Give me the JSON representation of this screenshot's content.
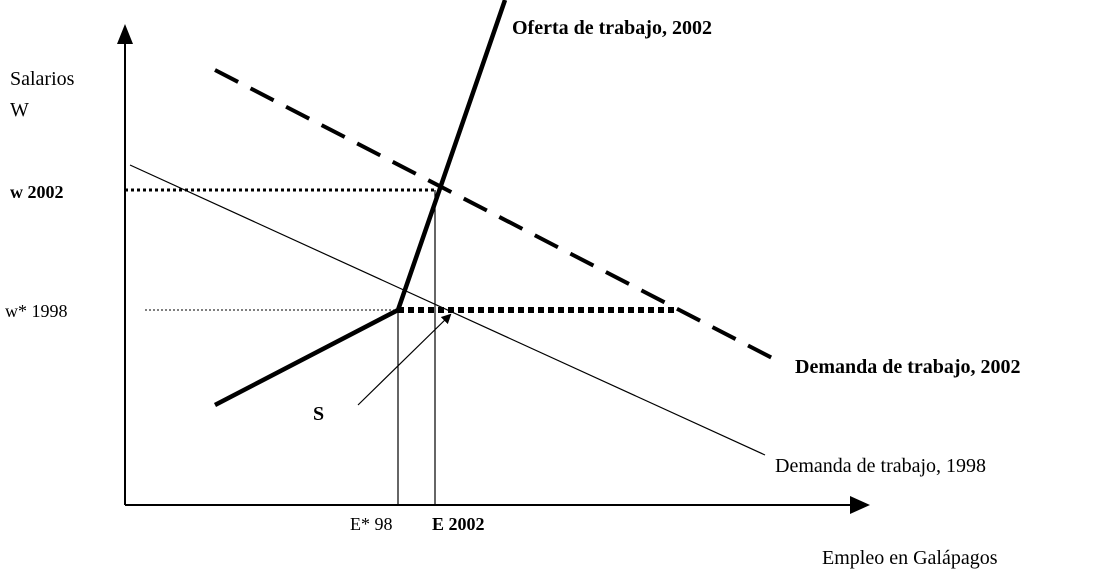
{
  "axes": {
    "y_label_line1": "Salarios",
    "y_label_line2": "W",
    "x_label": "Empleo en Galápagos"
  },
  "y_marks": {
    "w_2002": "w 2002",
    "w_1998": "w* 1998"
  },
  "x_marks": {
    "e_98": "E* 98",
    "e_2002": "E 2002"
  },
  "curves": {
    "supply_2002": "Oferta de trabajo, 2002",
    "demand_2002": "Demanda de trabajo, 2002",
    "demand_1998": "Demanda de trabajo, 1998"
  },
  "point_label": "S"
}
